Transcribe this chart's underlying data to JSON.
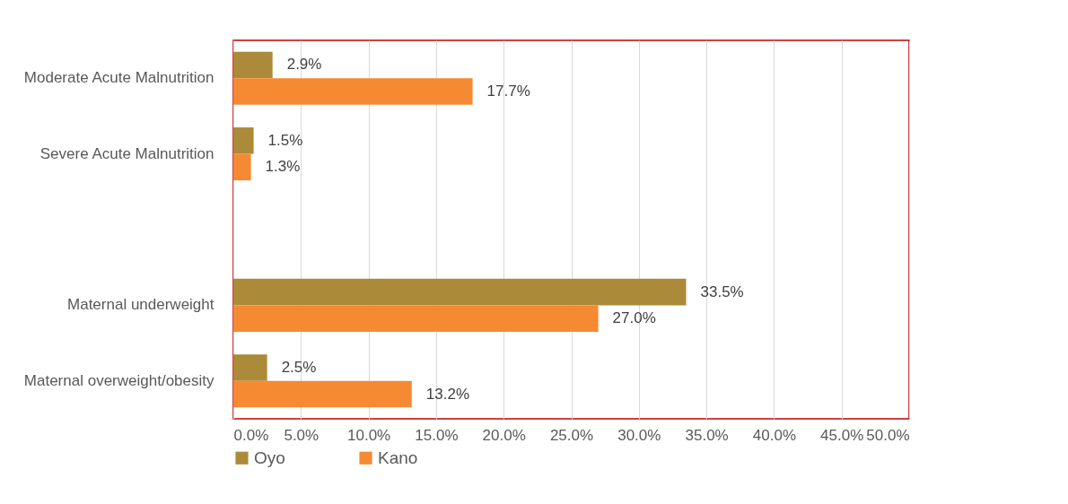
{
  "chart_data": {
    "type": "bar",
    "orientation": "horizontal",
    "categories": [
      "Moderate Acute Malnutrition",
      "Severe Acute Malnutrition",
      null,
      "Maternal underweight",
      "Maternal overweight/obesity"
    ],
    "series": [
      {
        "name": "Oyo",
        "color": "#ab8b3a",
        "values": [
          2.9,
          1.5,
          null,
          33.5,
          2.5
        ],
        "value_labels": [
          "2.9%",
          "1.5%",
          null,
          "33.5%",
          "2.5%"
        ]
      },
      {
        "name": "Kano",
        "color": "#f58a32",
        "values": [
          17.7,
          1.3,
          null,
          27.0,
          13.2
        ],
        "value_labels": [
          "17.7%",
          "1.3%",
          null,
          "27.0%",
          "13.2%"
        ]
      }
    ],
    "xlim": [
      0,
      50
    ],
    "xticks": [
      {
        "value": 0,
        "label": "0.0%"
      },
      {
        "value": 5,
        "label": "5.0%"
      },
      {
        "value": 10,
        "label": "10.0%"
      },
      {
        "value": 15,
        "label": "15.0%"
      },
      {
        "value": 20,
        "label": "20.0%"
      },
      {
        "value": 25,
        "label": "25.0%"
      },
      {
        "value": 30,
        "label": "30.0%"
      },
      {
        "value": 35,
        "label": "35.0%"
      },
      {
        "value": 40,
        "label": "40.0%"
      },
      {
        "value": 45,
        "label": "45.0%"
      },
      {
        "value": 50,
        "label": "50.0%"
      }
    ],
    "grid": "x",
    "legend": "bottom"
  }
}
